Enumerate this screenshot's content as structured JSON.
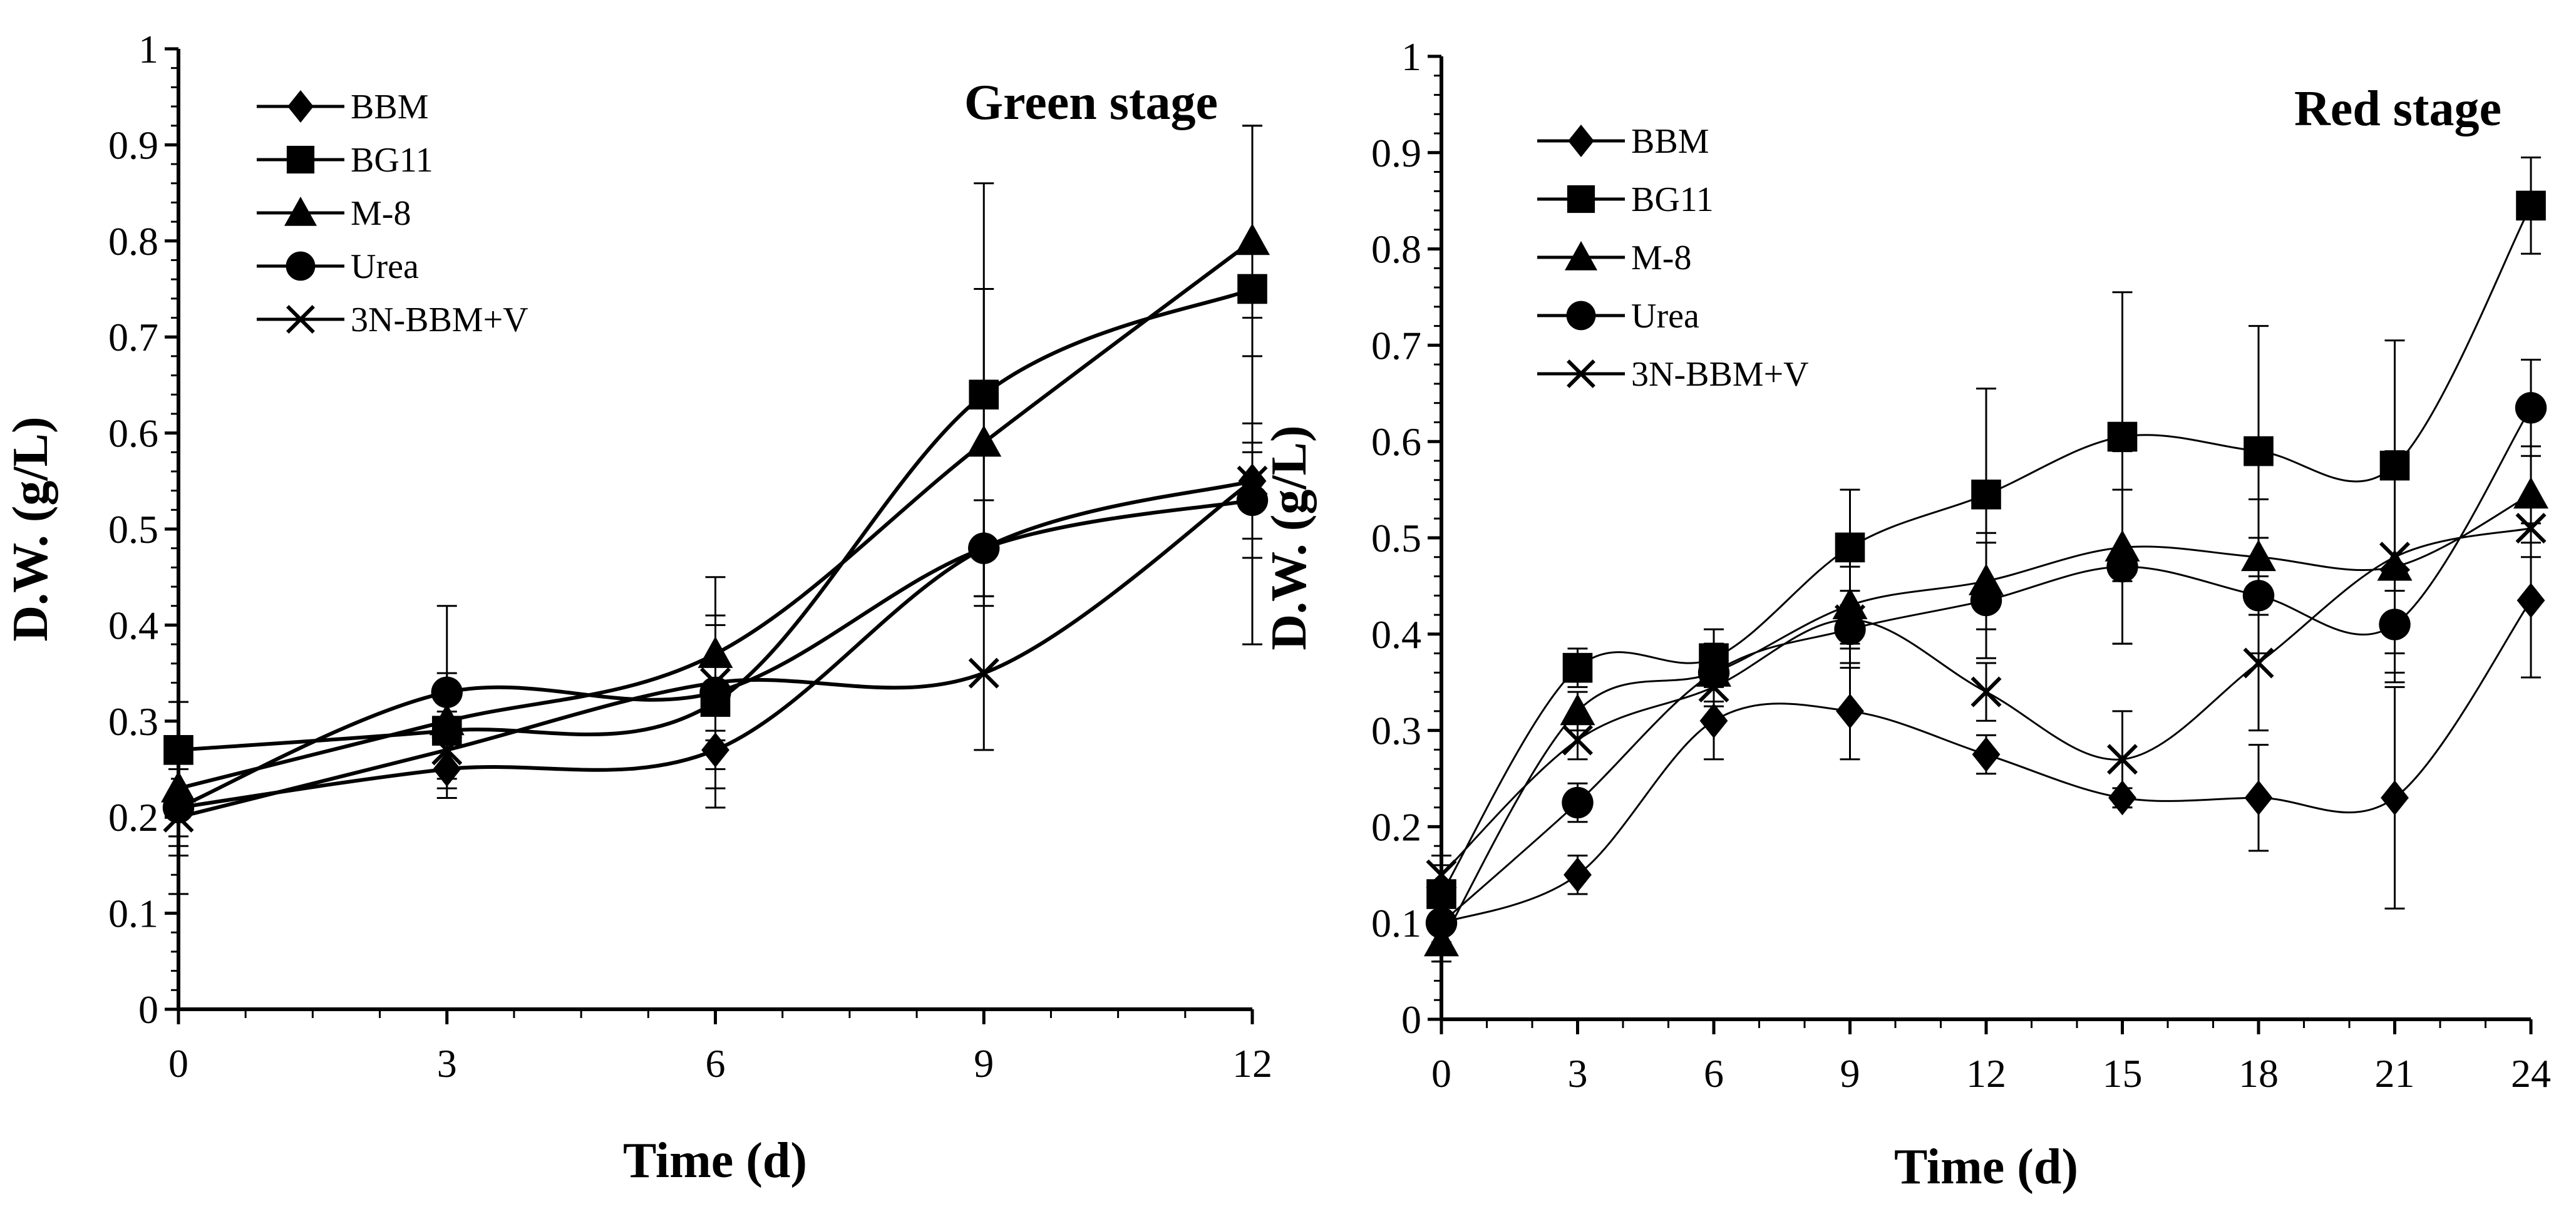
{
  "chart_data": [
    {
      "type": "line",
      "title": "Green stage",
      "xlabel": "Time (d)",
      "ylabel": "D.W. (g/L)",
      "xlim": [
        0,
        12
      ],
      "ylim": [
        0,
        1
      ],
      "x": [
        0,
        3,
        6,
        9,
        12
      ],
      "x_ticks": [
        0,
        3,
        6,
        9,
        12
      ],
      "x_tick_labels": [
        "0",
        "3",
        "6",
        "9",
        "12"
      ],
      "y_ticks": [
        0,
        0.1,
        0.2,
        0.3,
        0.4,
        0.5,
        0.6,
        0.7,
        0.8,
        0.9,
        1
      ],
      "y_tick_labels": [
        "0",
        "0.1",
        "0.2",
        "0.3",
        "0.4",
        "0.5",
        "0.6",
        "0.7",
        "0.8",
        "0.9",
        "1"
      ],
      "grid": false,
      "legend_position": "top-left",
      "series": [
        {
          "name": "BBM",
          "marker": "diamond",
          "values": [
            0.21,
            0.25,
            0.27,
            0.48,
            0.55
          ],
          "errors": [
            0.05,
            0.03,
            0.06,
            0.05,
            0.06
          ]
        },
        {
          "name": "BG11",
          "marker": "square",
          "values": [
            0.27,
            0.29,
            0.32,
            0.64,
            0.75
          ],
          "errors": [
            0.05,
            0.04,
            0.09,
            0.22,
            0.17
          ]
        },
        {
          "name": "M-8",
          "marker": "triangle",
          "values": [
            0.23,
            0.3,
            0.37,
            0.59,
            0.8
          ],
          "errors": [
            0.05,
            0.05,
            0.08,
            0.16,
            0.12
          ]
        },
        {
          "name": "Urea",
          "marker": "circle",
          "values": [
            0.21,
            0.33,
            0.33,
            0.48,
            0.53
          ],
          "errors": [
            0.04,
            0.09,
            0.08,
            0.05,
            0.06
          ]
        },
        {
          "name": "3N-BBM+V",
          "marker": "x",
          "values": [
            0.2,
            0.27,
            0.34,
            0.35,
            0.55
          ],
          "errors": [
            0.08,
            0.04,
            0.06,
            0.08,
            0.17
          ]
        }
      ]
    },
    {
      "type": "line",
      "title": "Red stage",
      "xlabel": "Time (d)",
      "ylabel": "D.W. (g/L)",
      "xlim": [
        0,
        24
      ],
      "ylim": [
        0,
        1
      ],
      "x": [
        0,
        3,
        6,
        9,
        12,
        15,
        18,
        21,
        24
      ],
      "x_ticks": [
        0,
        3,
        6,
        9,
        12,
        15,
        18,
        21,
        24
      ],
      "x_tick_labels": [
        "0",
        "3",
        "6",
        "9",
        "12",
        "15",
        "18",
        "21",
        "24"
      ],
      "y_ticks": [
        0,
        0.1,
        0.2,
        0.3,
        0.4,
        0.5,
        0.6,
        0.7,
        0.8,
        0.9,
        1
      ],
      "y_tick_labels": [
        "0",
        "0.1",
        "0.2",
        "0.3",
        "0.4",
        "0.5",
        "0.6",
        "0.7",
        "0.8",
        "0.9",
        "1"
      ],
      "grid": false,
      "legend_position": "top-left",
      "series": [
        {
          "name": "BBM",
          "marker": "diamond",
          "values": [
            0.1,
            0.15,
            0.31,
            0.32,
            0.275,
            0.23,
            0.23,
            0.23,
            0.435
          ],
          "errors": [
            0.02,
            0.02,
            0.04,
            0.05,
            0.02,
            0.01,
            0.055,
            0.115,
            0.08
          ]
        },
        {
          "name": "BG11",
          "marker": "square",
          "values": [
            0.13,
            0.365,
            0.375,
            0.49,
            0.545,
            0.605,
            0.59,
            0.575,
            0.845
          ],
          "errors": [
            0.03,
            0.02,
            0.03,
            0.06,
            0.11,
            0.15,
            0.13,
            0.13,
            0.05
          ]
        },
        {
          "name": "M-8",
          "marker": "triangle",
          "values": [
            0.08,
            0.32,
            0.36,
            0.43,
            0.455,
            0.49,
            0.48,
            0.47,
            0.545
          ],
          "errors": [
            0.02,
            0.02,
            0.03,
            0.04,
            0.05,
            0.1,
            0.06,
            0.12,
            0.05
          ]
        },
        {
          "name": "Urea",
          "marker": "circle",
          "values": [
            0.1,
            0.225,
            0.36,
            0.405,
            0.435,
            0.47,
            0.44,
            0.41,
            0.635
          ],
          "errors": [
            0.02,
            0.02,
            0.03,
            0.04,
            0.06,
            0.08,
            0.06,
            0.05,
            0.05
          ]
        },
        {
          "name": "3N-BBM+V",
          "marker": "x",
          "values": [
            0.15,
            0.29,
            0.345,
            0.415,
            0.34,
            0.27,
            0.37,
            0.48,
            0.51
          ],
          "errors": [
            0.02,
            0.02,
            0.02,
            0.03,
            0.03,
            0.05,
            0.07,
            0.1,
            0.03
          ]
        }
      ]
    }
  ]
}
